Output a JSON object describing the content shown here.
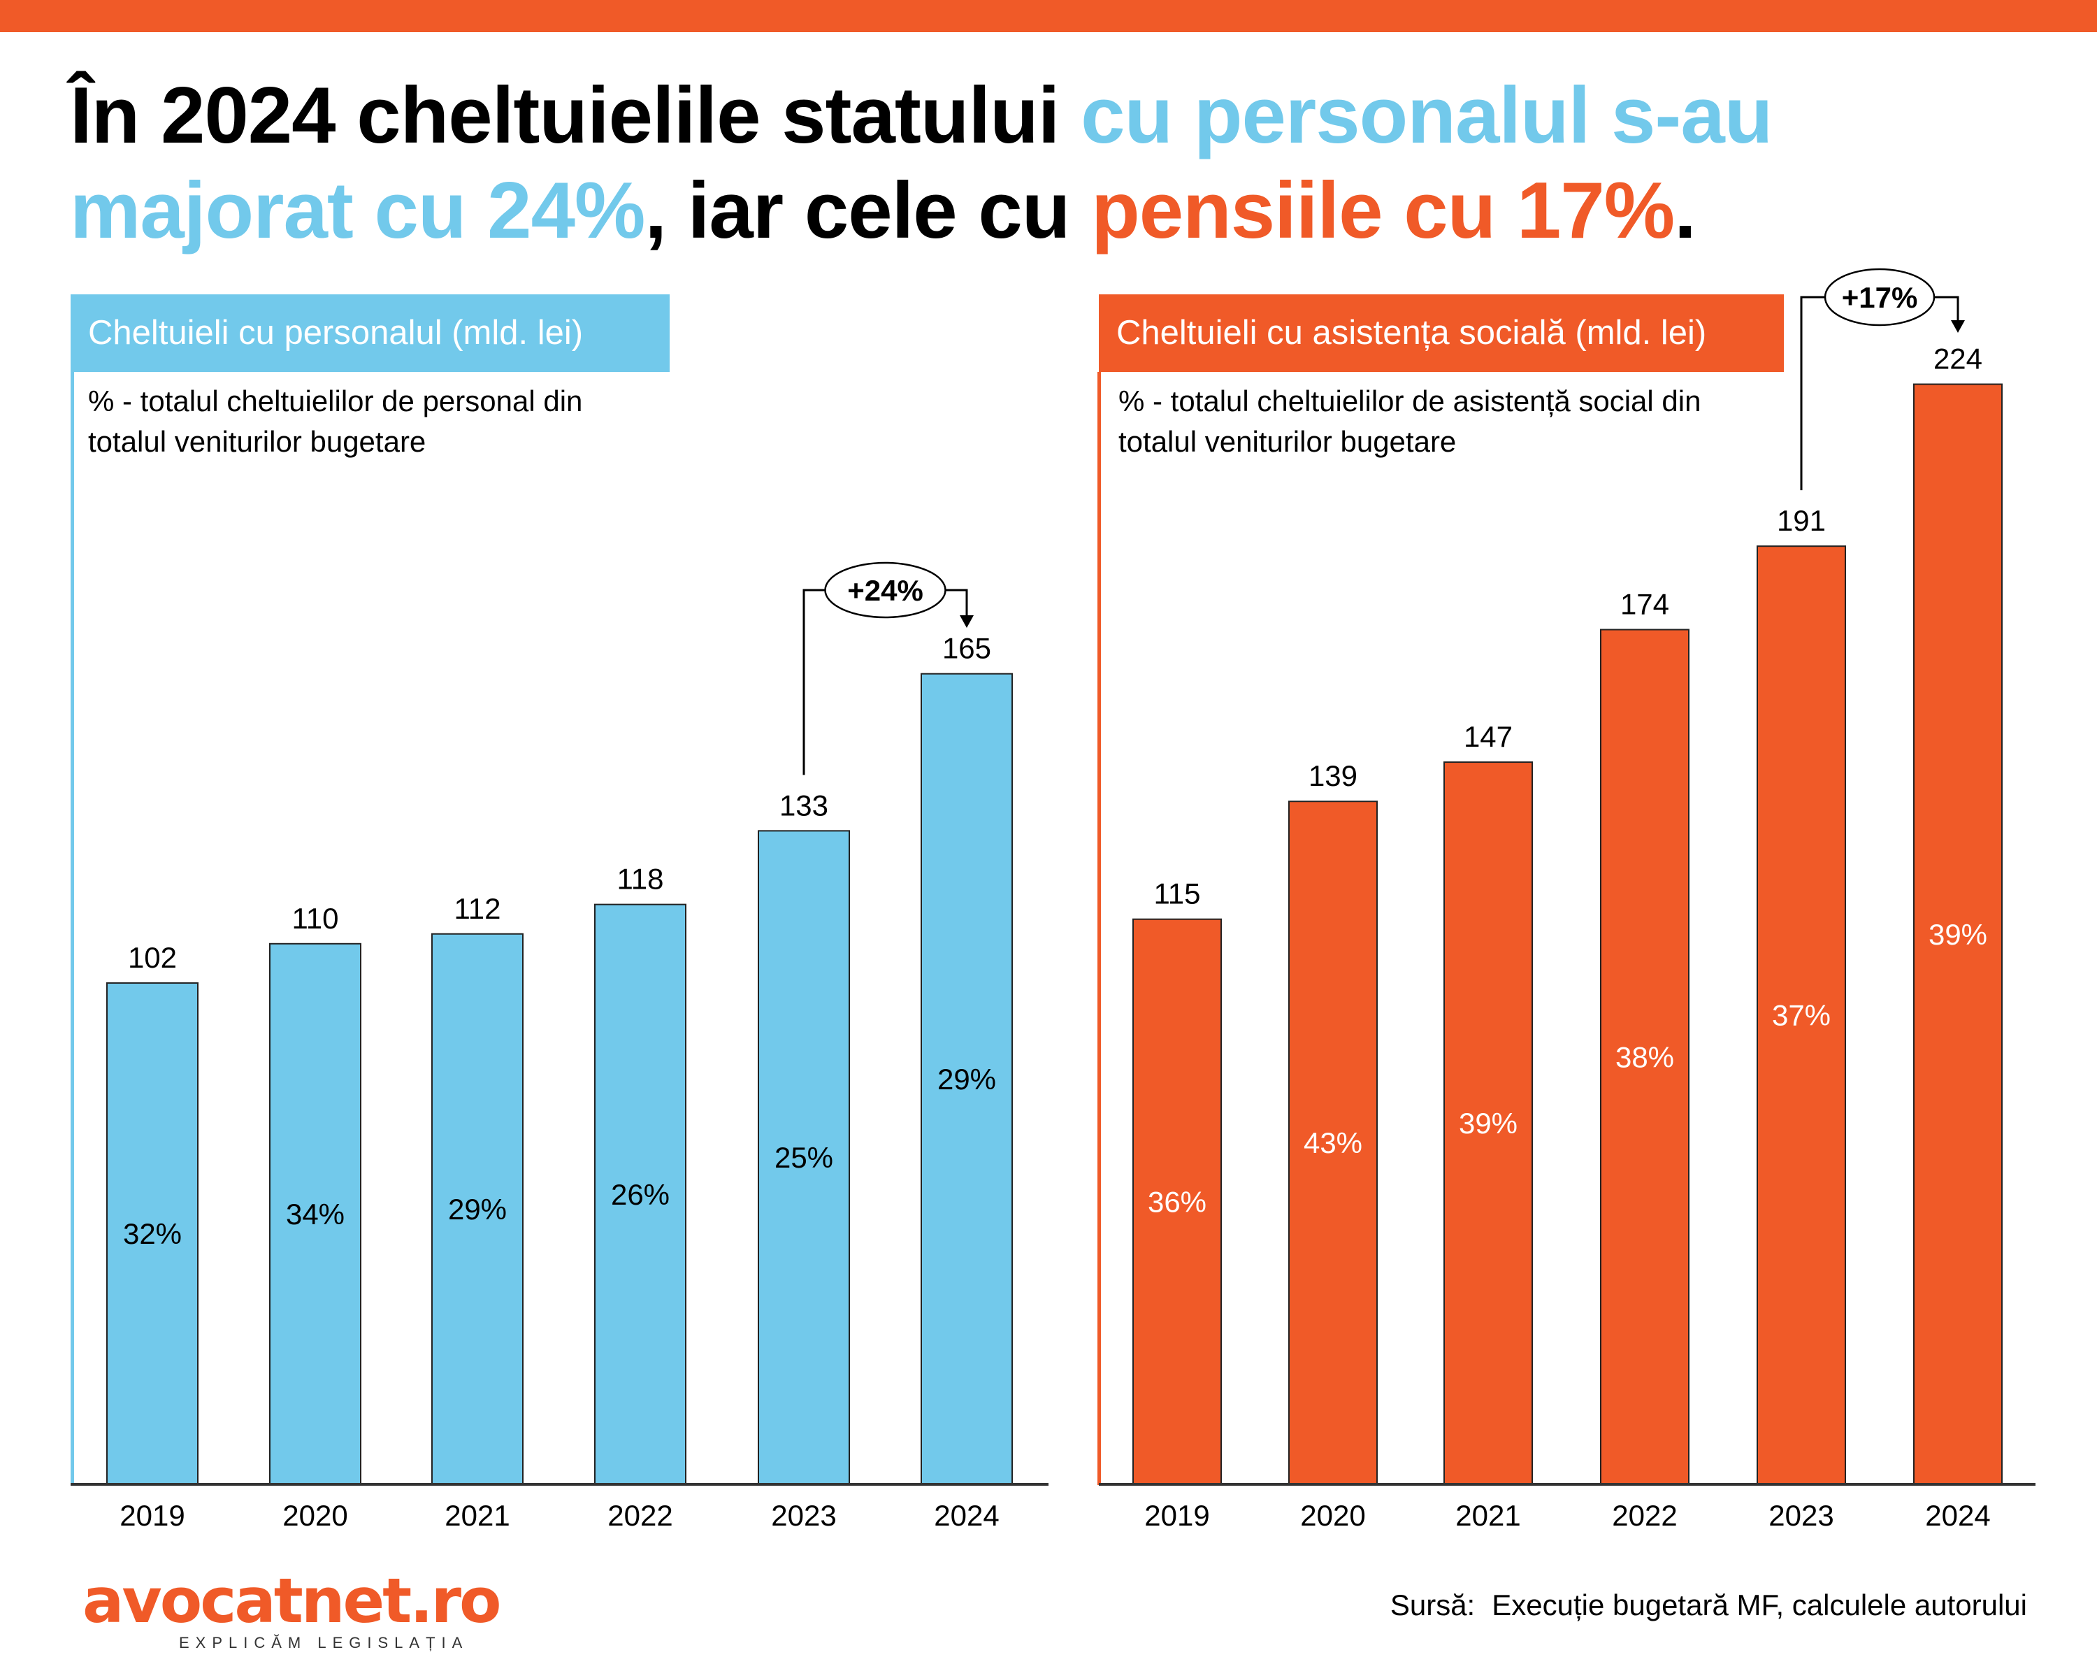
{
  "title": {
    "part1": "În 2024 cheltuielile statului ",
    "part2_blue": "cu personalul s-au majorat cu 24%",
    "part3": ", iar cele cu ",
    "part4_orange": "pensiile cu 17%",
    "part5": "."
  },
  "colors": {
    "blue": "#72C9EB",
    "orange": "#F05A28",
    "text": "#000000",
    "white": "#FFFFFF"
  },
  "left_panel": {
    "header": "Cheltuieli cu personalul (mld. lei)",
    "subtitle": "% - totalul cheltuielilor de personal din totalul veniturilor bugetare"
  },
  "right_panel": {
    "header": "Cheltuieli cu asistența socială (mld. lei)",
    "subtitle": "% - totalul cheltuielilor de asistență social din totalul veniturilor bugetare"
  },
  "chart_data": [
    {
      "type": "bar",
      "title": "Cheltuieli cu personalul (mld. lei)",
      "subtitle": "% - totalul cheltuielilor de personal din totalul veniturilor bugetare",
      "categories": [
        "2019",
        "2020",
        "2021",
        "2022",
        "2023",
        "2024"
      ],
      "values": [
        102,
        110,
        112,
        118,
        133,
        165
      ],
      "value_labels": [
        "102",
        "110",
        "112",
        "118",
        "133",
        "165"
      ],
      "share_labels": [
        "32%",
        "34%",
        "29%",
        "26%",
        "25%",
        "29%"
      ],
      "shares": [
        32,
        34,
        29,
        26,
        25,
        29
      ],
      "color": "#72C9EB",
      "annotation": {
        "from": "2023",
        "to": "2024",
        "label": "+24%"
      },
      "xlabel": "",
      "ylabel": "",
      "ylim": [
        0,
        230
      ],
      "grid": false,
      "legend": "none"
    },
    {
      "type": "bar",
      "title": "Cheltuieli cu asistența socială (mld. lei)",
      "subtitle": "% - totalul cheltuielilor de asistență social din totalul veniturilor bugetare",
      "categories": [
        "2019",
        "2020",
        "2021",
        "2022",
        "2023",
        "2024"
      ],
      "values": [
        115,
        139,
        147,
        174,
        191,
        224
      ],
      "value_labels": [
        "115",
        "139",
        "147",
        "174",
        "191",
        "224"
      ],
      "share_labels": [
        "36%",
        "43%",
        "39%",
        "38%",
        "37%",
        "39%"
      ],
      "shares": [
        36,
        43,
        39,
        38,
        37,
        39
      ],
      "color": "#F05A28",
      "annotation": {
        "from": "2023",
        "to": "2024",
        "label": "+17%"
      },
      "xlabel": "",
      "ylabel": "",
      "ylim": [
        0,
        230
      ],
      "grid": false,
      "legend": "none"
    }
  ],
  "footer": {
    "logo_name": "avocatnet.ro",
    "logo_tagline": "EXPLICĂM LEGISLAȚIA",
    "source_label": "Sursă:",
    "source_text": "Execuție bugetară MF, calculele autorului"
  }
}
